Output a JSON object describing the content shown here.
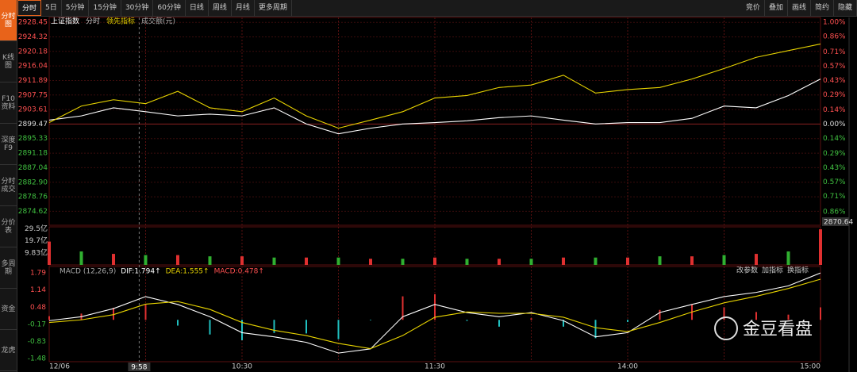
{
  "toolbar": {
    "tabs": [
      "分时",
      "5日",
      "5分钟",
      "15分钟",
      "30分钟",
      "60分钟",
      "日线",
      "周线",
      "月线",
      "更多周期"
    ],
    "right_buttons": [
      "竞价",
      "叠加",
      "画线",
      "简约",
      "隐藏"
    ]
  },
  "sidebar": [
    "分时图",
    "K线图",
    "F10资料",
    "深度F9",
    "分时成交",
    "分价表",
    "多周期",
    "资金",
    "龙虎"
  ],
  "time_axis": {
    "xlim": [
      0,
      240
    ],
    "x": [
      0,
      10,
      20,
      30,
      40,
      50,
      60,
      70,
      80,
      90,
      100,
      110,
      120,
      130,
      140,
      150,
      160,
      170,
      180,
      190,
      200,
      210,
      220,
      230,
      240
    ],
    "grid": [
      30,
      60,
      90,
      120,
      150,
      180,
      210
    ],
    "ticks": [
      {
        "value": 0,
        "label": "12/06"
      },
      {
        "value": 60,
        "label": "10:30"
      },
      {
        "value": 120,
        "label": "11:30"
      },
      {
        "value": 180,
        "label": "14:00"
      },
      {
        "value": 240,
        "label": "15:00"
      }
    ],
    "crosshair": {
      "value": 28,
      "label": "9:58"
    }
  },
  "price_panel": {
    "legend_extra": [
      "分时",
      "成交额(元)"
    ],
    "ylim": [
      2870.64,
      2929.85
    ],
    "base": 2899.47,
    "low_label": 2870.64,
    "yticks": [
      2928.45,
      2924.32,
      2920.18,
      2916.04,
      2911.89,
      2907.75,
      2903.61,
      2899.47,
      2895.33,
      2891.18,
      2887.04,
      {
        "value": 2882.9,
        "label": "2882.90"
      },
      2878.76,
      2874.62
    ],
    "pct_lim": [
      -0.994,
      1.048
    ],
    "pct_ticks": [
      {
        "value": 1.0,
        "label": "1.00%"
      },
      {
        "value": 0.86,
        "label": "0.86%"
      },
      {
        "value": 0.71,
        "label": "0.71%"
      },
      {
        "value": 0.57,
        "label": "0.57%"
      },
      {
        "value": 0.43,
        "label": "0.43%"
      },
      {
        "value": 0.29,
        "label": "0.29%"
      },
      {
        "value": 0.14,
        "label": "0.14%"
      },
      {
        "value": 0,
        "label": "0.00%"
      },
      {
        "value": -0.14,
        "label": "0.14%"
      },
      {
        "value": -0.29,
        "label": "0.29%"
      },
      {
        "value": -0.43,
        "label": "0.43%"
      },
      {
        "value": -0.57,
        "label": "0.57%"
      },
      {
        "value": -0.71,
        "label": "0.71%"
      },
      {
        "value": -0.86,
        "label": "0.86%"
      }
    ],
    "series": [
      {
        "name": "上证指数",
        "color": "#ffffff",
        "values": [
          2900.6,
          2901.8,
          2904.1,
          2903,
          2901.8,
          2902.3,
          2901.8,
          2904.1,
          2899.5,
          2896.7,
          2898.3,
          2899.5,
          2899.9,
          2900.4,
          2901.3,
          2901.8,
          2900.6,
          2899.5,
          2899.9,
          2899.9,
          2901.1,
          2904.6,
          2904.1,
          2907.6,
          2912.3
        ]
      },
      {
        "name": "领先指标",
        "color": "#e8d400",
        "values": [
          2899.9,
          2904.6,
          2906.4,
          2905.3,
          2908.8,
          2904.1,
          2903,
          2906.9,
          2901.8,
          2898.3,
          2900.6,
          2903,
          2906.9,
          2907.6,
          2909.9,
          2910.6,
          2913.4,
          2908.3,
          2909.3,
          2909.9,
          2912.3,
          2915.3,
          2918.5,
          2920.4,
          2922.3
        ]
      }
    ]
  },
  "volume_panel": {
    "ylim": [
      0,
      31
    ],
    "yticks": [
      {
        "value": 29.5,
        "label": "29.5亿"
      },
      {
        "value": 19.7,
        "label": "19.7亿"
      },
      {
        "value": 9.83,
        "label": "9.83亿"
      }
    ],
    "values": [
      19,
      11,
      9,
      8,
      8,
      7,
      7,
      6,
      6,
      6,
      5,
      5,
      6,
      5,
      5,
      5,
      6,
      6,
      6,
      7,
      7,
      8,
      9,
      11,
      29
    ]
  },
  "macd_panel": {
    "title": "MACD (12,26,9)",
    "dif_label": "DIF:1.794↑",
    "dea_label": "DEA:1.555↑",
    "macd_label": "MACD:0.478↑",
    "buttons": [
      "改参数",
      "加指标",
      "换指标"
    ],
    "ylim": [
      -1.6,
      2.04
    ],
    "yticks": [
      1.79,
      1.14,
      0.48,
      -0.17,
      -0.83,
      -1.48
    ],
    "dif": [
      -0.03,
      0.12,
      0.43,
      0.89,
      0.59,
      0.12,
      -0.49,
      -0.65,
      -0.86,
      -1.27,
      -1.11,
      0.12,
      0.59,
      0.28,
      0.12,
      0.28,
      -0.03,
      -0.65,
      -0.49,
      0.28,
      0.59,
      0.89,
      1.05,
      1.3,
      1.794
    ],
    "dea": [
      -0.1,
      0,
      0.2,
      0.6,
      0.7,
      0.4,
      -0.1,
      -0.4,
      -0.6,
      -0.9,
      -1.1,
      -0.6,
      0.1,
      0.3,
      0.25,
      0.25,
      0.1,
      -0.3,
      -0.45,
      -0.1,
      0.3,
      0.65,
      0.9,
      1.2,
      1.555
    ],
    "macd": [
      0.14,
      0.24,
      0.46,
      0.58,
      -0.22,
      -0.56,
      -0.78,
      -0.5,
      -0.52,
      -0.74,
      -0.02,
      0.9,
      0.98,
      -0.04,
      -0.26,
      0.06,
      -0.26,
      -0.7,
      -0.08,
      0.38,
      0.58,
      0.48,
      0.3,
      0.2,
      0.478
    ]
  },
  "watermark": "金豆看盘"
}
